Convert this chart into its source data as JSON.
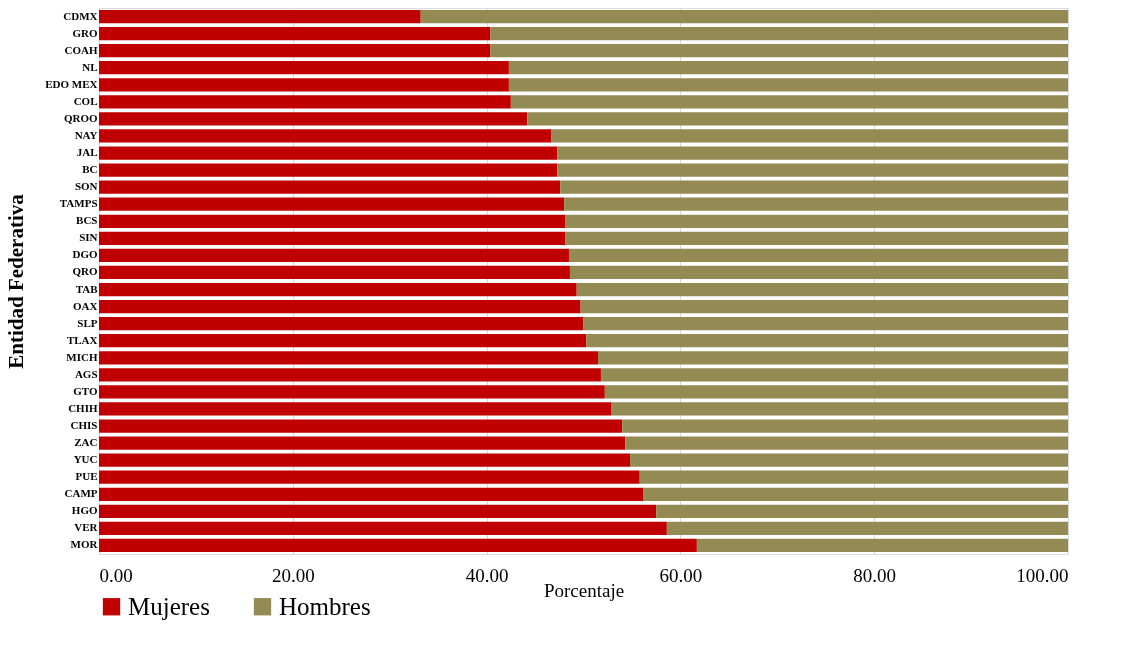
{
  "chart_data": {
    "type": "bar",
    "orientation": "horizontal",
    "stacked": true,
    "xlabel": "Porcentaje",
    "ylabel": "Entidad Federativa",
    "categories": [
      "CDMX",
      "GRO",
      "COAH",
      "NL",
      "EDO MEX",
      "COL",
      "QROO",
      "NAY",
      "JAL",
      "BC",
      "SON",
      "TAMPS",
      "BCS",
      "SIN",
      "DGO",
      "QRO",
      "TAB",
      "OAX",
      "SLP",
      "TLAX",
      "MICH",
      "AGS",
      "GTO",
      "CHIH",
      "CHIS",
      "ZAC",
      "YUC",
      "PUE",
      "CAMP",
      "HGO",
      "VER",
      "MOR"
    ],
    "series": [
      {
        "name": "Mujeres",
        "color": "#c00000",
        "values": [
          33.2,
          40.4,
          40.4,
          42.3,
          42.3,
          42.5,
          44.2,
          46.7,
          47.3,
          47.3,
          47.6,
          48.0,
          48.1,
          48.1,
          48.5,
          48.6,
          49.3,
          49.7,
          50.0,
          50.3,
          51.5,
          51.8,
          52.2,
          52.9,
          54.0,
          54.3,
          54.8,
          55.8,
          56.2,
          57.5,
          58.6,
          61.7
        ]
      },
      {
        "name": "Hombres",
        "color": "#948a54",
        "values": [
          66.8,
          59.6,
          59.6,
          57.7,
          57.7,
          57.5,
          55.8,
          53.3,
          52.7,
          52.7,
          52.4,
          52.0,
          51.9,
          51.9,
          51.5,
          51.4,
          50.7,
          50.3,
          50.0,
          49.7,
          48.5,
          48.2,
          47.8,
          47.1,
          46.0,
          45.7,
          45.2,
          44.2,
          43.8,
          42.5,
          41.4,
          38.3
        ]
      }
    ],
    "xlim": [
      0,
      100
    ],
    "xticks": [
      {
        "value": 0,
        "label": "0.00"
      },
      {
        "value": 20,
        "label": "20.00"
      },
      {
        "value": 40,
        "label": "40.00"
      },
      {
        "value": 60,
        "label": "60.00"
      },
      {
        "value": 80,
        "label": "80.00"
      },
      {
        "value": 100,
        "label": "100.00"
      }
    ],
    "grid": "x",
    "legend": "bottom"
  }
}
